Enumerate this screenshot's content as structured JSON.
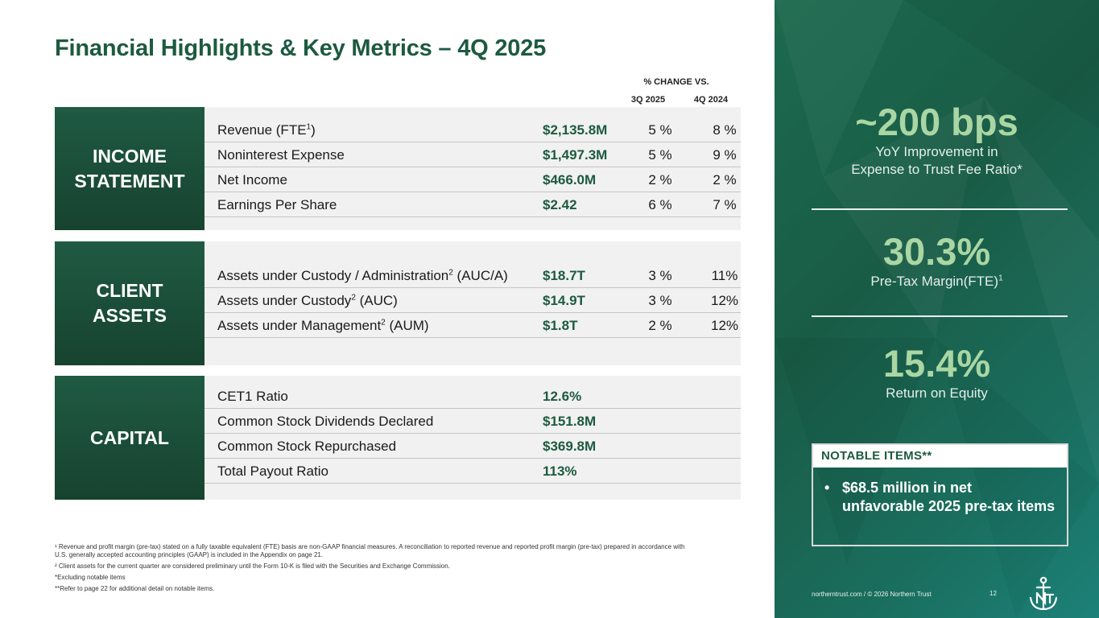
{
  "title": "Financial Highlights & Key Metrics – 4Q 2025",
  "table_header": {
    "change_vs": "% CHANGE VS.",
    "q3": "3Q 2025",
    "q4": "4Q 2024"
  },
  "income_statement": {
    "label_line1": "INCOME",
    "label_line2": "STATEMENT",
    "rows": [
      {
        "label": "Revenue (FTE",
        "sup": "1",
        "label_end": ")",
        "value": "$2,135.8M",
        "q3": "5 %",
        "q4": "8 %"
      },
      {
        "label": "Noninterest Expense",
        "value": "$1,497.3M",
        "q3": "5 %",
        "q4": "9 %"
      },
      {
        "label": "Net Income",
        "value": "$466.0M",
        "q3": "2 %",
        "q4": "2 %"
      },
      {
        "label": "Earnings Per Share",
        "value": "$2.42",
        "q3": "6 %",
        "q4": "7 %"
      }
    ]
  },
  "client_assets": {
    "label_line1": "CLIENT",
    "label_line2": "ASSETS",
    "rows": [
      {
        "label": "Assets under Custody / Administration",
        "sup": "2",
        "label_end": " (AUC/A)",
        "value": "$18.7T",
        "q3": "3 %",
        "q4": "11%"
      },
      {
        "label": "Assets under Custody",
        "sup": "2",
        "label_end": " (AUC)",
        "value": "$14.9T",
        "q3": "3 %",
        "q4": "12%"
      },
      {
        "label": "Assets under Management",
        "sup": "2",
        "label_end": " (AUM)",
        "value": "$1.8T",
        "q3": "2 %",
        "q4": "12%"
      }
    ]
  },
  "capital": {
    "label": "CAPITAL",
    "rows": [
      {
        "label": "CET1 Ratio",
        "value": "12.6%"
      },
      {
        "label": "Common Stock Dividends Declared",
        "value": "$151.8M"
      },
      {
        "label": "Common Stock Repurchased",
        "value": "$369.8M"
      },
      {
        "label": "Total Payout Ratio",
        "value": "113%"
      }
    ]
  },
  "metrics": [
    {
      "big": "~200 bps",
      "sub1": "YoY Improvement in",
      "sub2": "Expense to Trust Fee Ratio*"
    },
    {
      "big": "30.3%",
      "sub1": "Pre-Tax Margin(FTE)",
      "sup": "1"
    },
    {
      "big": "15.4%",
      "sub1": "Return on Equity"
    }
  ],
  "notable": {
    "header": "NOTABLE ITEMS**",
    "bullet": "•",
    "item": "$68.5 million in net unfavorable 2025 pre-tax items"
  },
  "footnotes": {
    "f1_mark": "¹",
    "f1": "Revenue and profit margin (pre-tax) stated on a fully taxable equivalent (FTE) basis are non-GAAP financial measures. A reconciliation to reported revenue and reported profit margin (pre-tax) prepared in accordance with U.S. generally accepted accounting principles (GAAP) is included in the Appendix on page 21.",
    "f2_mark": "²",
    "f2": "Client assets for the current quarter are considered preliminary until the Form 10-K is filed with the Securities and Exchange Commission.",
    "f3": "*Excluding notable items",
    "f4": "**Refer to page 22 for additional detail on notable items."
  },
  "footer": {
    "text": "northerntrust.com / © 2026 Northern Trust",
    "page": "12"
  },
  "colors": {
    "brand_green": "#1d5a40",
    "metric_green": "#a9d6a3"
  },
  "icons": {
    "logo": "northern-trust-anchor-logo"
  }
}
